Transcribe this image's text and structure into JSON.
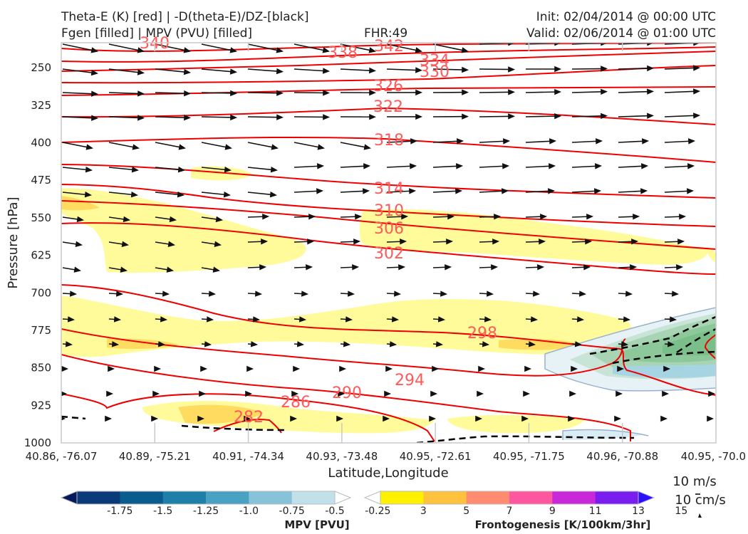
{
  "header": {
    "title_line1": "Theta-E (K) [red] | -D(theta-E)/DZ-[black]",
    "title_line2": "Fgen [filled] | MPV (PVU) [filled]",
    "fhr": "FHR:49",
    "init": "Init: 02/04/2014 @ 00:00 UTC",
    "valid": "Valid: 02/06/2014 @ 01:00 UTC"
  },
  "chart_data": {
    "type": "cross-section",
    "ylabel": "Pressure [hPa]",
    "xlabel": "Latitude,Longitude",
    "ylim": [
      1000,
      200
    ],
    "y_ticks": [
      250,
      325,
      400,
      475,
      550,
      625,
      700,
      775,
      850,
      925,
      1000
    ],
    "x_ticks": [
      "40.86, -76.07",
      "40.89, -75.21",
      "40.91, -74.34",
      "40.93, -73.48",
      "40.95, -72.61",
      "40.95, -71.75",
      "40.96, -70.88",
      "40.95, -70.0"
    ],
    "theta_e_labels": [
      {
        "text": "340"
      },
      {
        "text": "338"
      },
      {
        "text": "342"
      },
      {
        "text": "334"
      },
      {
        "text": "330"
      },
      {
        "text": "326"
      },
      {
        "text": "322"
      },
      {
        "text": "318"
      },
      {
        "text": "314"
      },
      {
        "text": "310"
      },
      {
        "text": "306"
      },
      {
        "text": "302"
      },
      {
        "text": "298"
      },
      {
        "text": "294"
      },
      {
        "text": "290"
      },
      {
        "text": "286"
      },
      {
        "text": "282"
      }
    ],
    "mpv_colorbar": {
      "label": "MPV [PVU]",
      "ticks": [
        "-1.75",
        "-1.5",
        "-1.25",
        "-1.0",
        "-0.75",
        "-0.5",
        "-0.25"
      ],
      "colors": [
        "#041a5c",
        "#0a3a7a",
        "#0b5c8e",
        "#1e80a8",
        "#49a2c4",
        "#86c2d8",
        "#c2e0ea",
        "#ffffff"
      ]
    },
    "fgen_colorbar": {
      "label": "Frontogenesis [K/100km/3hr]",
      "ticks": [
        "3",
        "5",
        "7",
        "9",
        "11",
        "13",
        "15"
      ],
      "colors": [
        "#ffffff",
        "#fff100",
        "#ffc23c",
        "#ff8c70",
        "#ff56a0",
        "#c828d8",
        "#7a1ef0",
        "#2a10ff"
      ]
    },
    "wind_key": {
      "line1": "10 m/s",
      "line2": "10 cm/s"
    }
  }
}
